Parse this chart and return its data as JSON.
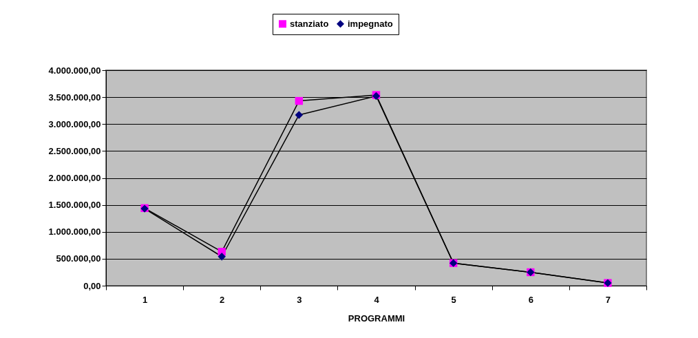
{
  "chart_data": {
    "type": "line",
    "xlabel": "PROGRAMMI",
    "categories": [
      "1",
      "2",
      "3",
      "4",
      "5",
      "6",
      "7"
    ],
    "series": [
      {
        "name": "stanziato",
        "color": "#ff00ff",
        "marker": "square",
        "values": [
          1440000,
          630000,
          3430000,
          3540000,
          420000,
          250000,
          50000
        ]
      },
      {
        "name": "impegnato",
        "color": "#000080",
        "marker": "diamond",
        "values": [
          1430000,
          540000,
          3170000,
          3520000,
          420000,
          250000,
          50000
        ]
      }
    ],
    "ylim": [
      0,
      4000000
    ],
    "yticks": [
      {
        "value": 0,
        "label": "0,00"
      },
      {
        "value": 500000,
        "label": "500.000,00"
      },
      {
        "value": 1000000,
        "label": "1.000.000,00"
      },
      {
        "value": 1500000,
        "label": "1.500.000,00"
      },
      {
        "value": 2000000,
        "label": "2.000.000,00"
      },
      {
        "value": 2500000,
        "label": "2.500.000,00"
      },
      {
        "value": 3000000,
        "label": "3.000.000,00"
      },
      {
        "value": 3500000,
        "label": "3.500.000,00"
      },
      {
        "value": 4000000,
        "label": "4.000.000,00"
      }
    ],
    "grid": "y",
    "legend": "top",
    "line_style": "solid"
  }
}
